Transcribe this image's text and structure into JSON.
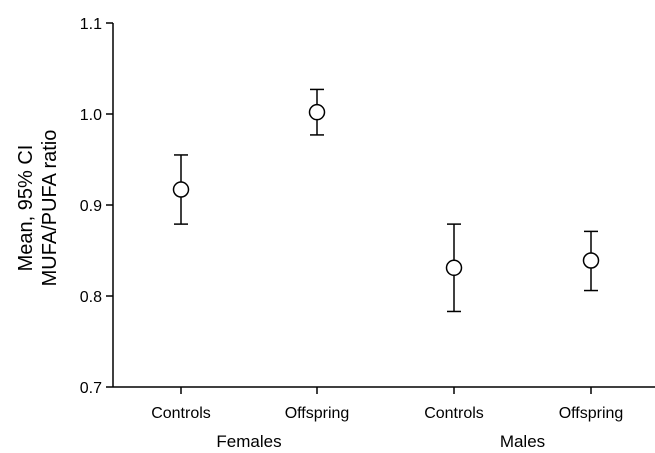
{
  "chart_data": {
    "type": "scatter",
    "title": "",
    "ylabel_lines": [
      "Mean, 95% CI",
      "MUFA/PUFA ratio"
    ],
    "ylim": [
      0.7,
      1.1
    ],
    "yticks": [
      "0.7",
      "0.8",
      "0.9",
      "1.0",
      "1.1"
    ],
    "categories": [
      "Controls",
      "Offspring",
      "Controls",
      "Offspring"
    ],
    "groups": [
      "Females",
      "Males"
    ],
    "points": [
      {
        "group": "Females",
        "category": "Controls",
        "mean": 0.917,
        "ci_low": 0.879,
        "ci_high": 0.955
      },
      {
        "group": "Females",
        "category": "Offspring",
        "mean": 1.002,
        "ci_low": 0.977,
        "ci_high": 1.027
      },
      {
        "group": "Males",
        "category": "Controls",
        "mean": 0.831,
        "ci_low": 0.783,
        "ci_high": 0.879
      },
      {
        "group": "Males",
        "category": "Offspring",
        "mean": 0.839,
        "ci_low": 0.806,
        "ci_high": 0.871
      }
    ],
    "grid": false,
    "legend": "none"
  }
}
